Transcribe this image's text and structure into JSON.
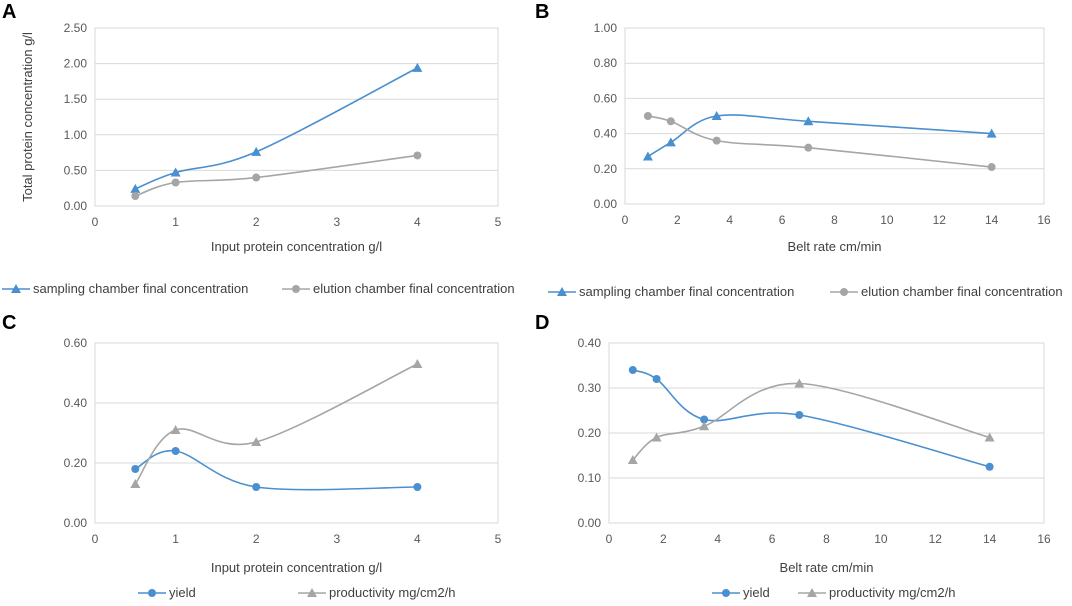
{
  "chart_data": [
    {
      "panel": "A",
      "type": "line",
      "title": "",
      "xlabel": "Input protein concentration g/l",
      "ylabel": "Total protein concentration g/l",
      "xlim": [
        0,
        5
      ],
      "ylim": [
        0,
        2.5
      ],
      "xticks": [
        "0",
        "1",
        "2",
        "3",
        "4",
        "5"
      ],
      "yticks": [
        "0.00",
        "0.50",
        "1.00",
        "1.50",
        "2.00",
        "2.50"
      ],
      "grid": "horizontal",
      "legend": "bottom",
      "series": [
        {
          "name": "sampling chamber final concentration",
          "color": "#4a8fd0",
          "marker": "triangle",
          "x": [
            0.5,
            1,
            2,
            4
          ],
          "y": [
            0.24,
            0.47,
            0.76,
            1.94
          ]
        },
        {
          "name": "elution chamber final concentration",
          "color": "#a5a5a5",
          "marker": "circle",
          "x": [
            0.5,
            1,
            2,
            4
          ],
          "y": [
            0.14,
            0.33,
            0.4,
            0.71
          ]
        }
      ]
    },
    {
      "panel": "B",
      "type": "line",
      "title": "",
      "xlabel": "Belt rate cm/min",
      "ylabel": "",
      "xlim": [
        0,
        16
      ],
      "ylim": [
        0,
        1
      ],
      "xticks": [
        "0",
        "2",
        "4",
        "6",
        "8",
        "10",
        "12",
        "14",
        "16"
      ],
      "yticks": [
        "0.00",
        "0.20",
        "0.40",
        "0.60",
        "0.80",
        "1.00"
      ],
      "grid": "horizontal",
      "legend": "bottom",
      "series": [
        {
          "name": "sampling chamber final concentration",
          "color": "#4a8fd0",
          "marker": "triangle",
          "x": [
            0.875,
            1.75,
            3.5,
            7,
            14
          ],
          "y": [
            0.27,
            0.35,
            0.5,
            0.47,
            0.4
          ]
        },
        {
          "name": "elution chamber final concentration",
          "color": "#a5a5a5",
          "marker": "circle",
          "x": [
            0.875,
            1.75,
            3.5,
            7,
            14
          ],
          "y": [
            0.5,
            0.47,
            0.36,
            0.32,
            0.21
          ]
        }
      ]
    },
    {
      "panel": "C",
      "type": "line",
      "title": "",
      "xlabel": "Input protein concentration g/l",
      "ylabel": "",
      "xlim": [
        0,
        5
      ],
      "ylim": [
        0,
        0.6
      ],
      "xticks": [
        "0",
        "1",
        "2",
        "3",
        "4",
        "5"
      ],
      "yticks": [
        "0.00",
        "0.20",
        "0.40",
        "0.60"
      ],
      "grid": "horizontal",
      "legend": "bottom",
      "series": [
        {
          "name": "yield",
          "color": "#4a8fd0",
          "marker": "circle",
          "x": [
            0.5,
            1,
            2,
            4
          ],
          "y": [
            0.18,
            0.24,
            0.12,
            0.12
          ]
        },
        {
          "name": "productivity mg/cm2/h",
          "color": "#a5a5a5",
          "marker": "triangle",
          "x": [
            0.5,
            1,
            2,
            4
          ],
          "y": [
            0.13,
            0.31,
            0.27,
            0.53
          ]
        }
      ]
    },
    {
      "panel": "D",
      "type": "line",
      "title": "",
      "xlabel": "Belt rate cm/min",
      "ylabel": "",
      "xlim": [
        0,
        16
      ],
      "ylim": [
        0,
        0.4
      ],
      "xticks": [
        "0",
        "2",
        "4",
        "6",
        "8",
        "10",
        "12",
        "14",
        "16"
      ],
      "yticks": [
        "0.00",
        "0.10",
        "0.20",
        "0.30",
        "0.40"
      ],
      "grid": "horizontal",
      "legend": "bottom",
      "series": [
        {
          "name": "yield",
          "color": "#4a8fd0",
          "marker": "circle",
          "x": [
            0.875,
            1.75,
            3.5,
            7,
            14
          ],
          "y": [
            0.34,
            0.32,
            0.23,
            0.24,
            0.125
          ]
        },
        {
          "name": "productivity mg/cm2/h",
          "color": "#a5a5a5",
          "marker": "triangle",
          "x": [
            0.875,
            1.75,
            3.5,
            7,
            14
          ],
          "y": [
            0.14,
            0.19,
            0.215,
            0.31,
            0.19
          ]
        }
      ]
    }
  ]
}
